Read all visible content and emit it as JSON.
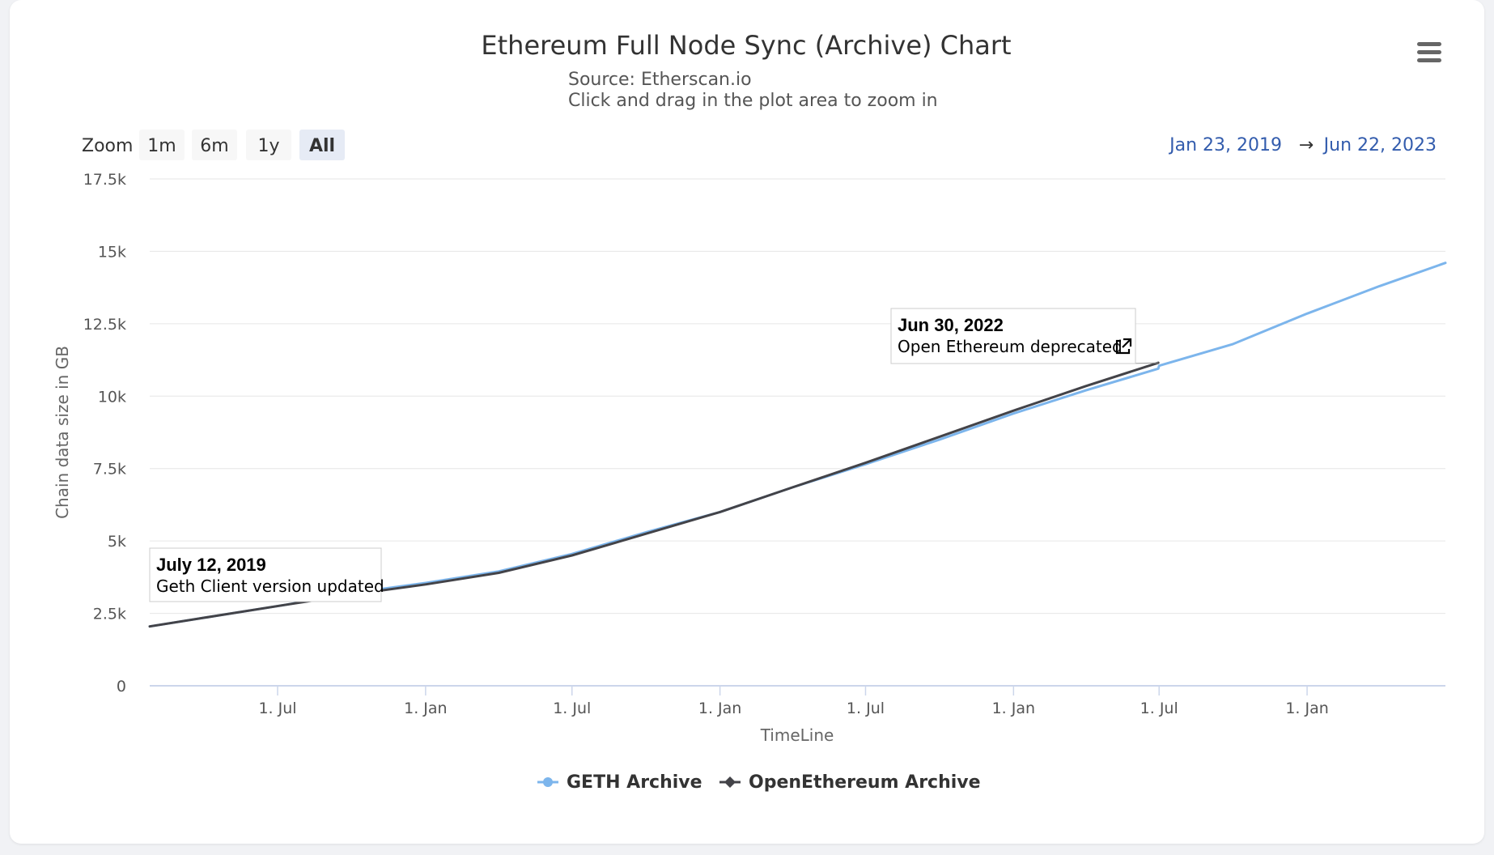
{
  "chart_data": {
    "type": "line",
    "title": "Ethereum Full Node Sync (Archive) Chart",
    "subtitle_lines": [
      "Source: Etherscan.io",
      "Click and drag in the plot area to zoom in"
    ],
    "xlabel": "TimeLine",
    "ylabel": "Chain data size in GB",
    "x_range": [
      "2019-01-23",
      "2023-06-22"
    ],
    "ylim": [
      0,
      17500
    ],
    "y_ticks": [
      0,
      2500,
      5000,
      7500,
      10000,
      12500,
      15000,
      17500
    ],
    "y_tick_labels": [
      "0",
      "2.5k",
      "5k",
      "7.5k",
      "10k",
      "12.5k",
      "15k",
      "17.5k"
    ],
    "x_ticks": [
      {
        "date": "2019-07-01",
        "label": "1. Jul"
      },
      {
        "date": "2020-01-01",
        "label": "1. Jan"
      },
      {
        "date": "2020-07-01",
        "label": "1. Jul"
      },
      {
        "date": "2021-01-01",
        "label": "1. Jan"
      },
      {
        "date": "2021-07-01",
        "label": "1. Jul"
      },
      {
        "date": "2022-01-01",
        "label": "1. Jan"
      },
      {
        "date": "2022-07-01",
        "label": "1. Jul"
      },
      {
        "date": "2023-01-01",
        "label": "1. Jan"
      }
    ],
    "grid": true,
    "legend_position": "bottom-center",
    "series": [
      {
        "name": "GETH Archive",
        "color": "#7cb5ec",
        "marker": "circle",
        "points": [
          [
            "2019-01-23",
            2050
          ],
          [
            "2019-04-01",
            2350
          ],
          [
            "2019-07-12",
            2800
          ],
          [
            "2019-10-01",
            3200
          ],
          [
            "2020-01-01",
            3550
          ],
          [
            "2020-04-01",
            3950
          ],
          [
            "2020-07-01",
            4550
          ],
          [
            "2020-10-01",
            5300
          ],
          [
            "2021-01-01",
            6000
          ],
          [
            "2021-04-01",
            6850
          ],
          [
            "2021-07-01",
            7650
          ],
          [
            "2021-10-01",
            8500
          ],
          [
            "2022-01-01",
            9400
          ],
          [
            "2022-04-01",
            10200
          ],
          [
            "2022-06-30",
            10950
          ],
          [
            "2022-07-01",
            11050
          ],
          [
            "2022-10-01",
            11800
          ],
          [
            "2023-01-01",
            12850
          ],
          [
            "2023-04-01",
            13800
          ],
          [
            "2023-06-22",
            14600
          ]
        ]
      },
      {
        "name": "OpenEthereum Archive",
        "color": "#434348",
        "marker": "diamond",
        "points": [
          [
            "2019-01-23",
            2050
          ],
          [
            "2019-04-01",
            2350
          ],
          [
            "2019-07-12",
            2800
          ],
          [
            "2019-10-01",
            3150
          ],
          [
            "2020-01-01",
            3500
          ],
          [
            "2020-04-01",
            3900
          ],
          [
            "2020-07-01",
            4500
          ],
          [
            "2020-10-01",
            5250
          ],
          [
            "2021-01-01",
            6000
          ],
          [
            "2021-04-01",
            6850
          ],
          [
            "2021-07-01",
            7700
          ],
          [
            "2021-10-01",
            8600
          ],
          [
            "2022-01-01",
            9500
          ],
          [
            "2022-04-01",
            10350
          ],
          [
            "2022-06-30",
            11150
          ]
        ]
      }
    ],
    "annotations": [
      {
        "date": "2019-07-12",
        "value": 2800,
        "title": "July 12, 2019",
        "text": "Geth Client version updated"
      },
      {
        "date": "2022-06-30",
        "value": 11150,
        "title": "Jun 30, 2022",
        "text": "Open Ethereum deprecated",
        "icon": "external-link-icon"
      }
    ]
  },
  "toolbar": {
    "zoom_label": "Zoom",
    "zoom_buttons": [
      "1m",
      "6m",
      "1y",
      "All"
    ],
    "active_zoom": "All",
    "range_from": "Jan 23, 2019",
    "range_arrow": "→",
    "range_to": "Jun 22, 2023",
    "menu_icon": "hamburger-menu-icon"
  },
  "colors": {
    "grid": "#e6e6e6",
    "axis": "#ccd6eb",
    "range_text": "#335cad",
    "zoom_button_bg": "#f7f7f7",
    "zoom_button_active_bg": "#e6ebf5"
  }
}
